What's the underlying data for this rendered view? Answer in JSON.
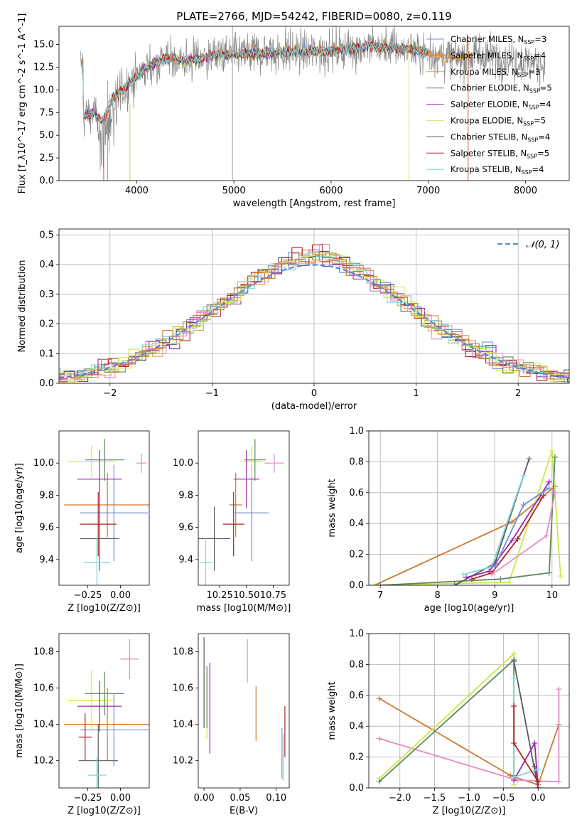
{
  "colors": [
    "#6b8fd6",
    "#e08a3c",
    "#d9a348",
    "#5f8a5f",
    "#9b27a8",
    "#e6e07a",
    "#5a5a5a",
    "#b22222",
    "#7fd6dc",
    "#e78ac3",
    "#c9e84a",
    "#cc7a30"
  ],
  "chart_data": [
    {
      "id": "spectrum",
      "type": "line",
      "title": "PLATE=2766, MJD=54242, FIBERID=0080, z=0.119",
      "xlabel": "wavelength [Angstrom, rest frame]",
      "ylabel": "Flux [f_λ10^-17 erg cm^-2 s^-1 A^-1]",
      "xlim": [
        3200,
        8450
      ],
      "ylim": [
        0,
        17
      ],
      "xticks": [
        "4000",
        "5000",
        "6000",
        "7000",
        "8000"
      ],
      "yticks": [
        "0.0",
        "2.5",
        "5.0",
        "7.5",
        "10.0",
        "12.5",
        "15.0"
      ],
      "legend": [
        "Chabrier MILES, N_SSP=3",
        "Salpeter MILES, N_SSP=4",
        "Kroupa MILES, N_SSP=3",
        "Chabrier ELODIE, N_SSP=5",
        "Salpeter ELODIE, N_SSP=4",
        "Kroupa ELODIE, N_SSP=5",
        "Chabrier STELIB, N_SSP=4",
        "Salpeter STELIB, N_SSP=5",
        "Kroupa STELIB, N_SSP=4"
      ],
      "legend_colors": [
        "#6b8fd6",
        "#e08a3c",
        "#d9a348",
        "#5f8a5f",
        "#9b27a8",
        "#e6e07a",
        "#5a5a5a",
        "#b22222",
        "#7fd6dc"
      ],
      "legend_placement": "top-right",
      "data_envelope": {
        "x": [
          3450,
          3550,
          3650,
          3750,
          3850,
          3950,
          4100,
          4300,
          4500,
          4800,
          5200,
          5600,
          6000,
          6400,
          6800,
          7200,
          7600,
          8000,
          8200
        ],
        "y": [
          7.0,
          7.5,
          6.5,
          9.0,
          10.0,
          11.0,
          12.5,
          13.5,
          13.2,
          13.8,
          14.0,
          14.2,
          14.3,
          14.8,
          14.5,
          13.5,
          13.8,
          13.0,
          12.8
        ]
      }
    },
    {
      "id": "residuals",
      "type": "histogram",
      "xlabel": "(data-model)/error",
      "ylabel": "Normed distribution",
      "xlim": [
        -2.5,
        2.5
      ],
      "ylim": [
        0,
        0.52
      ],
      "xticks": [
        "−2",
        "−1",
        "0",
        "1",
        "2"
      ],
      "yticks": [
        "0.0",
        "0.1",
        "0.2",
        "0.3",
        "0.4",
        "0.5"
      ],
      "legend": [
        "𝒩(0, 1)"
      ],
      "legend_placement": "top-right",
      "grid": true
    },
    {
      "id": "age-vs-Z",
      "type": "errorbar",
      "xlabel": "Z [log10(Z/Z⊙)]",
      "ylabel": "age [log10(age/yr)]",
      "xlim": [
        -0.47,
        0.22
      ],
      "ylim": [
        9.24,
        10.2
      ],
      "xticks": [
        "−0.25",
        "0.00"
      ],
      "yticks": [
        "9.4",
        "9.6",
        "9.8",
        "10.0"
      ],
      "points": [
        {
          "x": -0.05,
          "xerr": 0.26,
          "y": 9.69,
          "yerr": 0.3,
          "color": "#6b8fd6"
        },
        {
          "x": -0.1,
          "xerr": 0.33,
          "y": 9.74,
          "yerr": 0.2,
          "color": "#cc7a30"
        },
        {
          "x": -0.22,
          "xerr": 0.18,
          "y": 10.01,
          "yerr": 0.1,
          "color": "#c9e84a"
        },
        {
          "x": -0.12,
          "xerr": 0.15,
          "y": 10.02,
          "yerr": 0.13,
          "color": "#5f8a5f"
        },
        {
          "x": -0.16,
          "xerr": 0.17,
          "y": 9.9,
          "yerr": 0.18,
          "color": "#9b27a8"
        },
        {
          "x": -0.17,
          "xerr": 0.14,
          "y": 9.62,
          "yerr": 0.2,
          "color": "#b22222"
        },
        {
          "x": -0.16,
          "xerr": 0.15,
          "y": 9.53,
          "yerr": 0.2,
          "color": "#5a5a5a"
        },
        {
          "x": -0.18,
          "xerr": 0.1,
          "y": 9.38,
          "yerr": 0.15,
          "color": "#7fd6dc"
        },
        {
          "x": 0.16,
          "xerr": 0.04,
          "y": 10.0,
          "yerr": 0.06,
          "color": "#e78ac3"
        }
      ]
    },
    {
      "id": "age-vs-mass",
      "type": "errorbar",
      "xlabel": "mass [log10(M/M⊙)]",
      "ylabel": "",
      "xlim": [
        10.05,
        10.9
      ],
      "ylim": [
        9.24,
        10.2
      ],
      "xticks": [
        "10.25",
        "10.50",
        "10.75"
      ],
      "yticks": [
        "9.4",
        "9.6",
        "9.8",
        "10.0"
      ],
      "points": [
        {
          "x": 10.55,
          "xerr": 0.16,
          "y": 9.69,
          "yerr": 0.3,
          "color": "#6b8fd6"
        },
        {
          "x": 10.4,
          "xerr": 0.06,
          "y": 9.74,
          "yerr": 0.2,
          "color": "#cc7a30"
        },
        {
          "x": 10.55,
          "xerr": 0.1,
          "y": 10.01,
          "yerr": 0.1,
          "color": "#c9e84a"
        },
        {
          "x": 10.58,
          "xerr": 0.1,
          "y": 10.02,
          "yerr": 0.13,
          "color": "#5f8a5f"
        },
        {
          "x": 10.5,
          "xerr": 0.12,
          "y": 9.9,
          "yerr": 0.18,
          "color": "#9b27a8"
        },
        {
          "x": 10.38,
          "xerr": 0.1,
          "y": 9.62,
          "yerr": 0.2,
          "color": "#b22222"
        },
        {
          "x": 10.2,
          "xerr": 0.15,
          "y": 9.53,
          "yerr": 0.2,
          "color": "#5a5a5a"
        },
        {
          "x": 10.12,
          "xerr": 0.06,
          "y": 9.38,
          "yerr": 0.15,
          "color": "#7fd6dc"
        },
        {
          "x": 10.76,
          "xerr": 0.09,
          "y": 10.0,
          "yerr": 0.06,
          "color": "#e78ac3"
        }
      ]
    },
    {
      "id": "massweight-vs-age",
      "type": "line",
      "xlabel": "age [log10(age/yr)]",
      "ylabel": "mass weight",
      "xlim": [
        6.8,
        10.3
      ],
      "ylim": [
        0,
        1
      ],
      "xticks": [
        "7",
        "8",
        "9",
        "10"
      ],
      "yticks": [
        "0.0",
        "0.2",
        "0.4",
        "0.6",
        "0.8",
        "1.0"
      ],
      "grid": true,
      "series": [
        {
          "color": "#cc7a30",
          "x": [
            6.9,
            9.3,
            10.05
          ],
          "y": [
            0.0,
            0.41,
            0.64
          ]
        },
        {
          "color": "#c9e84a",
          "x": [
            6.9,
            9.25,
            10.0,
            10.15
          ],
          "y": [
            0.0,
            0.02,
            0.87,
            0.06
          ]
        },
        {
          "color": "#5f8a5f",
          "x": [
            7.0,
            9.1,
            9.95,
            10.05
          ],
          "y": [
            0.0,
            0.04,
            0.08,
            0.83
          ]
        },
        {
          "color": "#5a5a5a",
          "x": [
            8.3,
            9.0,
            9.6
          ],
          "y": [
            0.0,
            0.14,
            0.82
          ]
        },
        {
          "color": "#7fd6dc",
          "x": [
            8.45,
            8.95,
            9.5
          ],
          "y": [
            0.07,
            0.12,
            0.71
          ]
        },
        {
          "color": "#9b27a8",
          "x": [
            8.5,
            8.9,
            9.3,
            9.95
          ],
          "y": [
            0.05,
            0.09,
            0.29,
            0.67
          ]
        },
        {
          "color": "#b22222",
          "x": [
            8.6,
            8.95,
            9.4,
            9.85
          ],
          "y": [
            0.04,
            0.08,
            0.3,
            0.58
          ]
        },
        {
          "color": "#e78ac3",
          "x": [
            8.95,
            9.9,
            10.05
          ],
          "y": [
            0.07,
            0.32,
            0.6
          ]
        },
        {
          "color": "#6b8fd6",
          "x": [
            9.0,
            9.5,
            9.95
          ],
          "y": [
            0.12,
            0.52,
            0.63
          ]
        }
      ]
    },
    {
      "id": "mass-vs-Z",
      "type": "errorbar",
      "xlabel": "Z [log10(Z/Z⊙)]",
      "ylabel": "mass [log10(M/M⊙)]",
      "xlim": [
        -0.47,
        0.22
      ],
      "ylim": [
        10.05,
        10.9
      ],
      "xticks": [
        "−0.25",
        "0.00"
      ],
      "yticks": [
        "10.2",
        "10.4",
        "10.6",
        "10.8"
      ],
      "points": [
        {
          "x": -0.05,
          "xerr": 0.26,
          "y": 10.37,
          "yerr": 0.2,
          "color": "#6b8fd6"
        },
        {
          "x": -0.1,
          "xerr": 0.33,
          "y": 10.4,
          "yerr": 0.2,
          "color": "#cc7a30"
        },
        {
          "x": -0.22,
          "xerr": 0.18,
          "y": 10.53,
          "yerr": 0.17,
          "color": "#c9e84a"
        },
        {
          "x": -0.12,
          "xerr": 0.15,
          "y": 10.57,
          "yerr": 0.12,
          "color": "#5f8a5f"
        },
        {
          "x": -0.16,
          "xerr": 0.17,
          "y": 10.5,
          "yerr": 0.14,
          "color": "#9b27a8"
        },
        {
          "x": -0.27,
          "xerr": 0.05,
          "y": 10.33,
          "yerr": 0.13,
          "color": "#b22222"
        },
        {
          "x": -0.17,
          "xerr": 0.15,
          "y": 10.2,
          "yerr": 0.2,
          "color": "#5a5a5a"
        },
        {
          "x": -0.18,
          "xerr": 0.07,
          "y": 10.12,
          "yerr": 0.1,
          "color": "#7fd6dc"
        },
        {
          "x": 0.07,
          "xerr": 0.07,
          "y": 10.76,
          "yerr": 0.11,
          "color": "#e78ac3"
        }
      ]
    },
    {
      "id": "mass-vs-EBV",
      "type": "errorbar",
      "xlabel": "E(B-V)",
      "ylabel": "",
      "xlim": [
        -0.008,
        0.118
      ],
      "ylim": [
        10.05,
        10.9
      ],
      "xticks": [
        "0.00",
        "0.05",
        "0.10"
      ],
      "yticks": [
        "10.2",
        "10.4",
        "10.6",
        "10.8"
      ],
      "points": [
        {
          "x": 0.108,
          "xerr": 0,
          "y": 10.24,
          "yerr": 0.14,
          "color": "#6b8fd6"
        },
        {
          "x": 0.072,
          "xerr": 0,
          "y": 10.46,
          "yerr": 0.15,
          "color": "#cc7a30"
        },
        {
          "x": 0.004,
          "xerr": 0,
          "y": 10.5,
          "yerr": 0.18,
          "color": "#c9e84a"
        },
        {
          "x": 0.004,
          "xerr": 0,
          "y": 10.55,
          "yerr": 0.17,
          "color": "#5f8a5f"
        },
        {
          "x": 0.008,
          "xerr": 0,
          "y": 10.49,
          "yerr": 0.25,
          "color": "#9b27a8"
        },
        {
          "x": 0.112,
          "xerr": 0,
          "y": 10.36,
          "yerr": 0.14,
          "color": "#b22222"
        },
        {
          "x": 0.0,
          "xerr": 0,
          "y": 10.63,
          "yerr": 0.25,
          "color": "#5a5a5a"
        },
        {
          "x": 0.11,
          "xerr": 0,
          "y": 10.22,
          "yerr": 0.13,
          "color": "#7fd6dc"
        },
        {
          "x": 0.06,
          "xerr": 0,
          "y": 10.75,
          "yerr": 0.12,
          "color": "#e78ac3"
        }
      ]
    },
    {
      "id": "massweight-vs-Z",
      "type": "line",
      "xlabel": "Z [log10(Z/Z⊙)]",
      "ylabel": "mass weight",
      "xlim": [
        -2.45,
        0.45
      ],
      "ylim": [
        0,
        1
      ],
      "xticks": [
        "−2.0",
        "−1.5",
        "−1.0",
        "−0.5",
        "0.0"
      ],
      "yticks": [
        "0.0",
        "0.2",
        "0.4",
        "0.6",
        "0.8",
        "1.0"
      ],
      "grid": true,
      "series": [
        {
          "color": "#cc7a30",
          "x": [
            -2.3,
            -0.4,
            0.0,
            0.3
          ],
          "y": [
            0.58,
            0.08,
            0.02,
            0.41
          ]
        },
        {
          "color": "#e78ac3",
          "x": [
            -2.3,
            -0.3,
            0.3,
            0.3
          ],
          "y": [
            0.32,
            0.05,
            0.04,
            0.64
          ]
        },
        {
          "color": "#c9e84a",
          "x": [
            -2.3,
            -0.35,
            -0.35
          ],
          "y": [
            0.06,
            0.87,
            0.02
          ]
        },
        {
          "color": "#5f8a5f",
          "x": [
            -2.3,
            -0.35,
            -0.35
          ],
          "y": [
            0.04,
            0.83,
            0.08
          ]
        },
        {
          "color": "#5a5a5a",
          "x": [
            -0.35,
            0.0,
            -0.05
          ],
          "y": [
            0.82,
            0.0,
            0.14
          ]
        },
        {
          "color": "#9b27a8",
          "x": [
            -0.35,
            -0.05,
            0.0
          ],
          "y": [
            0.05,
            0.29,
            0.0
          ]
        },
        {
          "color": "#7fd6dc",
          "x": [
            -0.35,
            -0.35,
            0.0
          ],
          "y": [
            0.71,
            0.07,
            0.12
          ]
        },
        {
          "color": "#b22222",
          "x": [
            -0.35,
            -0.35,
            0.0
          ],
          "y": [
            0.53,
            0.29,
            0.04
          ]
        }
      ]
    }
  ]
}
